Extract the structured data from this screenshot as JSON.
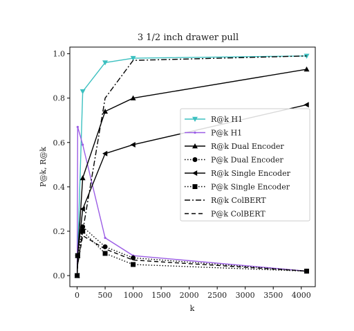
{
  "chart_data": {
    "type": "line",
    "title": "3 1/2 inch drawer pull",
    "xlabel": "k",
    "ylabel": "P@k, R@k",
    "xlim": [
      -130,
      4250
    ],
    "ylim": [
      -0.05,
      1.03
    ],
    "xticks": [
      0,
      500,
      1000,
      1500,
      2000,
      2500,
      3000,
      3500,
      4000
    ],
    "yticks": [
      0.0,
      0.2,
      0.4,
      0.6,
      0.8,
      1.0
    ],
    "ytick_labels": [
      "0.0",
      "0.2",
      "0.4",
      "0.6",
      "0.8",
      "1.0"
    ],
    "grid": false,
    "legend_position": "center-right",
    "series": [
      {
        "name": "R@k H1",
        "color": "#3cc0c0",
        "dash": "solid",
        "marker": "triangle-down",
        "x": [
          1,
          10,
          100,
          500,
          1000,
          4096
        ],
        "y": [
          0.0,
          0.09,
          0.83,
          0.96,
          0.98,
          0.99
        ]
      },
      {
        "name": "P@k H1",
        "color": "#9b5de5",
        "dash": "solid",
        "marker": "point",
        "x": [
          1,
          10,
          100,
          500,
          1000,
          4096
        ],
        "y": [
          0.0,
          0.67,
          0.59,
          0.17,
          0.09,
          0.02
        ]
      },
      {
        "name": "R@k Dual Encoder",
        "color": "#000000",
        "dash": "solid",
        "marker": "triangle-up",
        "x": [
          1,
          10,
          100,
          500,
          1000,
          4096
        ],
        "y": [
          0.0,
          0.09,
          0.44,
          0.74,
          0.8,
          0.93
        ]
      },
      {
        "name": "P@k Dual Encoder",
        "color": "#000000",
        "dash": "dotted",
        "marker": "circle",
        "x": [
          1,
          10,
          100,
          500,
          1000,
          4096
        ],
        "y": [
          0.0,
          0.09,
          0.22,
          0.13,
          0.08,
          0.02
        ]
      },
      {
        "name": "R@k Single Encoder",
        "color": "#000000",
        "dash": "solid",
        "marker": "triangle-left",
        "x": [
          1,
          10,
          100,
          500,
          1000,
          4096
        ],
        "y": [
          0.0,
          0.09,
          0.3,
          0.55,
          0.59,
          0.77
        ]
      },
      {
        "name": "P@k Single Encoder",
        "color": "#000000",
        "dash": "dotted",
        "marker": "square",
        "x": [
          1,
          10,
          100,
          500,
          1000,
          4096
        ],
        "y": [
          0.0,
          0.09,
          0.2,
          0.1,
          0.05,
          0.02
        ]
      },
      {
        "name": "R@k ColBERT",
        "color": "#000000",
        "dash": "dashdot",
        "marker": "none",
        "x": [
          1,
          10,
          100,
          500,
          1000,
          4096
        ],
        "y": [
          0.0,
          0.05,
          0.2,
          0.8,
          0.97,
          0.99
        ]
      },
      {
        "name": "P@k ColBERT",
        "color": "#000000",
        "dash": "dashed",
        "marker": "none",
        "x": [
          1,
          10,
          100,
          500,
          1000,
          4096
        ],
        "y": [
          0.0,
          0.05,
          0.18,
          0.12,
          0.07,
          0.02
        ]
      }
    ]
  }
}
